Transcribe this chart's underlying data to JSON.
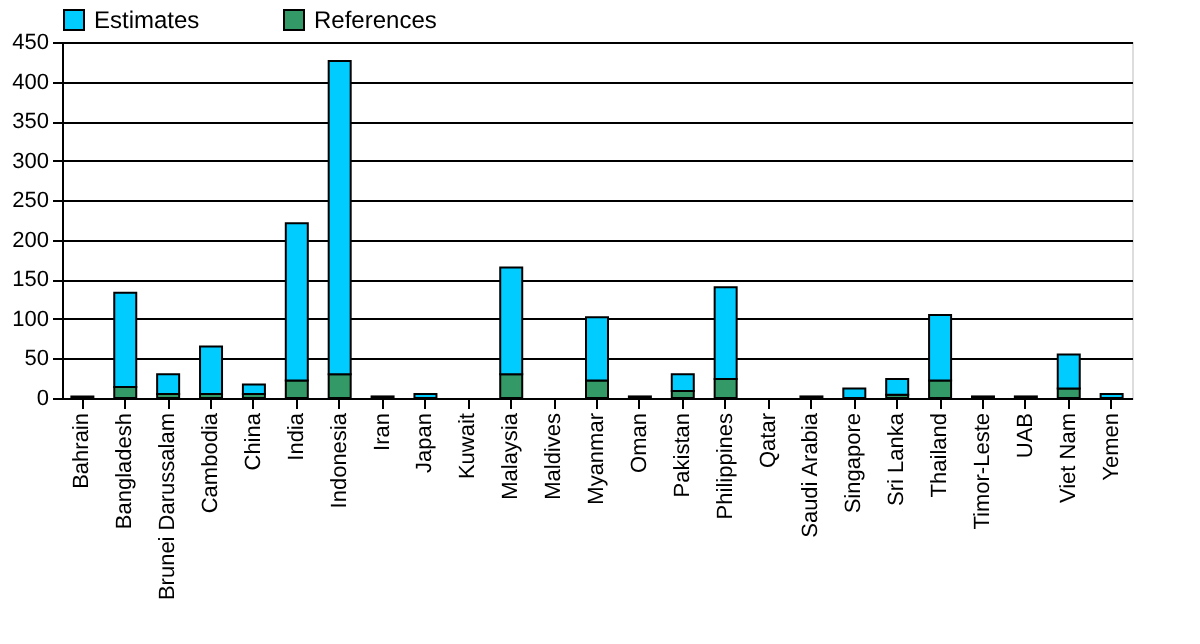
{
  "chart_data": {
    "type": "bar",
    "stacked": true,
    "categories": [
      "Bahrain",
      "Bangladesh",
      "Brunei Darussalam",
      "Cambodia",
      "China",
      "India",
      "Indonesia",
      "Iran",
      "Japan",
      "Kuwait",
      "Malaysia",
      "Maldives",
      "Myanmar",
      "Oman",
      "Pakistan",
      "Philippines",
      "Qatar",
      "Saudi Arabia",
      "Singapore",
      "Sri Lanka",
      "Thailand",
      "Timor-Leste",
      "UAB",
      "Viet Nam",
      "Yemen"
    ],
    "series": [
      {
        "name": "References",
        "color": "#339966",
        "values": [
          null,
          14,
          5,
          5,
          5,
          22,
          30,
          null,
          null,
          null,
          30,
          null,
          22,
          null,
          9,
          24,
          null,
          null,
          null,
          4,
          22,
          null,
          null,
          12,
          null
        ]
      },
      {
        "name": "Estimates",
        "color": "#00ccff",
        "values": [
          2,
          119,
          25,
          60,
          12,
          199,
          396,
          2,
          5,
          null,
          135,
          null,
          80,
          2,
          21,
          116,
          null,
          2,
          12,
          20,
          83,
          2,
          2,
          43,
          5
        ]
      }
    ],
    "ylim": [
      0,
      450
    ],
    "yticks": [
      0,
      50,
      100,
      150,
      200,
      250,
      300,
      350,
      400,
      450
    ],
    "grid": "y",
    "legend": "top"
  }
}
